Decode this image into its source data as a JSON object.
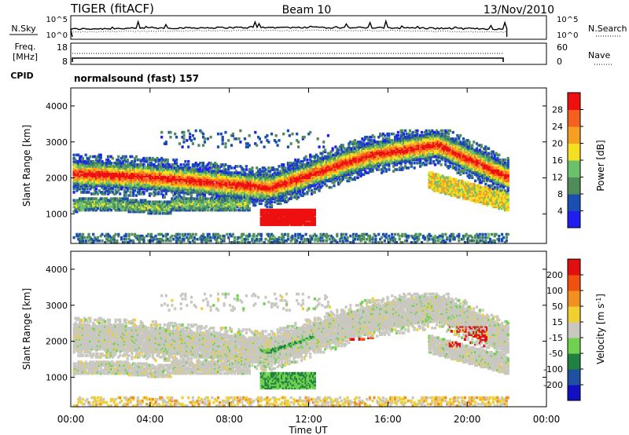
{
  "header": {
    "radar": "TIGER (fitACF)",
    "beam": "Beam 10",
    "date": "13/Nov/2010"
  },
  "status_panel": {
    "nsky_label": "N.Sky",
    "nsky_ticks": [
      "10^5",
      "10^0"
    ],
    "nsearch_label": "N.Search",
    "nsearch_ticks": [
      "10^5",
      "10^0"
    ],
    "freq_label": "Freq.",
    "freq_unit": "[MHz]",
    "freq_ticks": [
      "18",
      "8"
    ],
    "nave_label": "Nave",
    "nave_ticks": [
      "60",
      "0"
    ],
    "cpid_label": "CPID",
    "cpid_value": "normalsound (fast) 157"
  },
  "chart_data": [
    {
      "type": "heatmap",
      "panel": "power",
      "ylabel": "Slant Range [km]",
      "ylim": [
        180,
        4500
      ],
      "yticks": [
        "1000",
        "2000",
        "3000",
        "4000"
      ],
      "xlim": [
        0,
        24
      ],
      "colorbar_label": "Power [dB]",
      "colorbar_ticks": [
        "4",
        "8",
        "12",
        "16",
        "20",
        "24",
        "28"
      ],
      "colorbar_colors": [
        "#1e1ef0",
        "#1a4fb0",
        "#4f8c5a",
        "#6cc06c",
        "#f4e020",
        "#f5a020",
        "#f56020",
        "#ee1010"
      ],
      "data_end_hour": 22
    },
    {
      "type": "heatmap",
      "panel": "velocity",
      "ylabel": "Slant Range [km]",
      "ylim": [
        180,
        4500
      ],
      "yticks": [
        "1000",
        "2000",
        "3000",
        "4000"
      ],
      "xlim": [
        0,
        24
      ],
      "colorbar_label": "Velocity [m s^-1]",
      "colorbar_ticks": [
        "200",
        "100",
        "50",
        "15",
        "-15",
        "-50",
        "-100",
        "-200"
      ],
      "colorbar_colors": [
        "#1010c0",
        "#2050a0",
        "#208040",
        "#70d050",
        "#c8c8c0",
        "#f0d030",
        "#f09020",
        "#f05010",
        "#e01010"
      ],
      "data_end_hour": 22
    }
  ],
  "x_axis": {
    "label": "Time UT",
    "ticks": [
      "00:00",
      "04:00",
      "08:00",
      "12:00",
      "16:00",
      "20:00",
      "00:00"
    ]
  }
}
